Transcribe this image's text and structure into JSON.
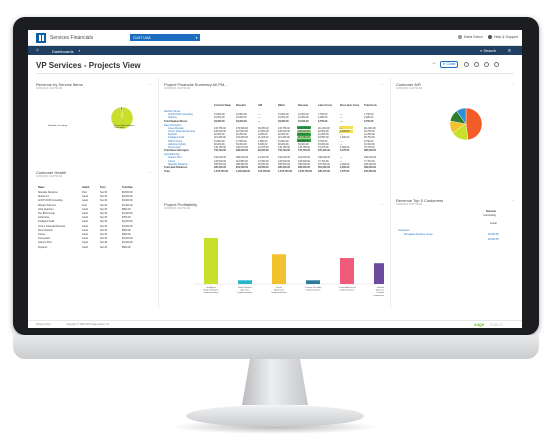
{
  "app": {
    "name": "Services Financials",
    "company": "CUST USA"
  },
  "user": {
    "name": "Karla Greco",
    "help": "Help & Support"
  },
  "nav": {
    "dashboards": "Dashboards",
    "search": "Search"
  },
  "page": {
    "title": "VP Services - Projects View",
    "close": "Close"
  },
  "revenue_by_service": {
    "title": "Revenue by Service Items",
    "sub": "01/06/2016 10:27:56 AM",
    "legend": [
      "Sitewide Consulting",
      "Project Mgt Software Consulting"
    ]
  },
  "customer_health": {
    "title": "Customer Health",
    "sub": "01/06/2016 10:27:56 AM",
    "headers": [
      "Name",
      "Health",
      "Term",
      "Total Due"
    ],
    "rows": [
      [
        "Sitewide Solutions",
        "Poor",
        "Net 30",
        "$6,500.00"
      ],
      [
        "Sholes Inc.",
        "Good",
        "Net 30",
        "$2,000.00"
      ],
      [
        "AOCTCOIR Consulting",
        "Good",
        "Net 30",
        "$3,000.00"
      ],
      [
        "Weston Partners",
        "Poor",
        "Net 30",
        "$1,000.00"
      ],
      [
        "Ultra Quantum",
        "Good",
        "Net 30",
        "$500.00"
      ],
      [
        "The BCS Group",
        "Good",
        "Net 30",
        "$1,000.00"
      ],
      [
        "GoSonrise",
        "Good",
        "Net 30",
        "$750.00"
      ],
      [
        "Intelligent Audit",
        "Good",
        "Net 30",
        "$2,000.00"
      ],
      [
        "Cirrum Financial Services",
        "Good",
        "Net 30",
        "$1,500.00"
      ],
      [
        "Noon Northon",
        "Good",
        "Net 30",
        "$500.00"
      ],
      [
        "Comet",
        "Good",
        "Net 30",
        "$250.00"
      ],
      [
        "Convention",
        "Good",
        "Net 30",
        "$2,000.00"
      ],
      [
        "Column Plus",
        "Good",
        "Net 30",
        "$1,000.00"
      ],
      [
        "Dynamic",
        "Good",
        "Net 30",
        "$500.00"
      ]
    ]
  },
  "project_financial": {
    "title": "Project Financial Summary All PM...",
    "sub": "01/06/2016 10:27:56 AM",
    "headers": [
      "Contract Value",
      "Receipts",
      "A/R",
      "Billed",
      "Revenue",
      "Labor Costs",
      "Non-Labor Costs",
      "Total Costs"
    ],
    "groups": [
      {
        "name": "Stephen Morse",
        "rows": [
          [
            "AOCTCOIR Consulting",
            "13,000.00",
            "13,000.00",
            "—",
            "13,000.00",
            "13,000.00",
            "1,750.00",
            "—",
            "1,750.00"
          ],
          [
            "Sighting",
            "10,000.00",
            "10,000.00",
            "—",
            "10,000.00",
            "10,000.00",
            "2,000.00",
            "—",
            "2,000.00"
          ]
        ],
        "total": [
          "Total Stephen Morse",
          "23,000.00",
          "23,000.00",
          "—",
          "23,000.00",
          "23,000.00",
          "3,750.00",
          "—",
          "3,750.00"
        ]
      },
      {
        "name": "Dave Harrington",
        "rows": [
          [
            "Green Rentals",
            "215,750.00",
            "179,500.00",
            "36,250.00",
            "215,750.00",
            "215,750.00",
            "111,000.00",
            "—",
            "111,000.00"
          ],
          [
            "Cirrum Financial Services",
            "125,000.00",
            "112,500.00",
            "12,500.00",
            "125,000.00",
            "125,000.00",
            "62,500.00",
            "1,875.00",
            "64,375.00"
          ],
          [
            "Dynamic",
            "32,500.00",
            "29,250.00",
            "3,250.00",
            "32,500.00",
            "32,500.00",
            "21,250.00",
            "—",
            "21,250.00"
          ],
          [
            "Intelligent Audit",
            "116,250.00",
            "104,625.00",
            "11,625.00",
            "116,250.00",
            "116,250.00",
            "64,550.00",
            "1,200.00",
            "65,750.00"
          ],
          [
            "NATIX Group",
            "19,500.00",
            "17,550.00",
            "1,950.00",
            "19,500.00",
            "19,500.00",
            "9,750.00",
            "—",
            "9,750.00"
          ],
          [
            "Jefferson Supply",
            "60,000.00",
            "54,000.00",
            "6,000.00",
            "60,000.00",
            "60,000.00",
            "33,000.00",
            "—",
            "33,000.00"
          ],
          [
            "Vencentrapi",
            "146,750.00",
            "132,075.00",
            "14,675.00",
            "146,750.00",
            "146,750.00",
            "73,375.00",
            "2,000.00",
            "75,375.00"
          ]
        ],
        "total": [
          "Total Dave Harrington",
          "715,750.00",
          "629,500.00",
          "86,250.00",
          "715,750.00",
          "715,750.00",
          "375,425.00",
          "5,075.00",
          "380,500.00"
        ]
      },
      {
        "name": "Jack Robinson",
        "rows": [
          [
            "Column Plus",
            "410,000.00",
            "369,000.00",
            "41,000.00",
            "410,000.00",
            "410,000.00",
            "246,000.00",
            "—",
            "246,000.00"
          ],
          [
            "Comet",
            "129,500.00",
            "116,550.00",
            "12,950.00",
            "129,500.00",
            "129,500.00",
            "77,700.00",
            "—",
            "77,700.00"
          ],
          [
            "Sitewide Solutions",
            "395,500.00",
            "355,950.00",
            "39,550.00",
            "395,500.00",
            "395,500.00",
            "237,300.00",
            "2,000.00",
            "239,300.00"
          ]
        ],
        "total": [
          "Total Jack Robinson",
          "935,000.00",
          "841,500.00",
          "93,500.00",
          "935,000.00",
          "935,000.00",
          "561,000.00",
          "2,000.00",
          "563,000.00"
        ]
      }
    ],
    "grand_total": [
      "Total",
      "1,673,750.00",
      "1,494,000.00",
      "179,750.00",
      "1,673,750.00",
      "1,673,750.00",
      "940,175.00",
      "7,075.00",
      "947,250.00"
    ]
  },
  "project_profitability": {
    "title": "Project Profitability",
    "sub": "01/06/2016 10:27:56 AM"
  },
  "customer_ar": {
    "title": "Customer A/R",
    "sub": "01/06/2016 10:27:56 AM"
  },
  "revenue_top5": {
    "title": "Revenue Top 5 Customers",
    "sub": "01/06/2016 10:27:56 AM",
    "col_header": "Revenue",
    "col_sub": "Year Ending",
    "col_sub2": "Actual",
    "group": "Customers",
    "row_name": "Renegade Furniture Group",
    "row_value": "26,062.50",
    "total_value": "26,062.50"
  },
  "footer": {
    "left": "Privacy Policy",
    "copyright": "Copyright © 1999-2016 Sage Intacct, Inc.",
    "brand1": "sage",
    "brand2": "intacct"
  },
  "chart_data": [
    {
      "type": "pie",
      "title": "Revenue by Service Items",
      "labels": [
        "Sitewide Consulting",
        "Project Mgt Software Consulting"
      ],
      "values": [
        98,
        2
      ],
      "colors": [
        "#c8e02b",
        "#2d7d2f"
      ]
    },
    {
      "type": "bar",
      "title": "Project Profitability",
      "categories": [
        "Intelligent Audit Standard Implementation",
        "Steel Workers Adv Stan Implementation",
        "Terrific Advanced Implementation",
        "Column Plus Adv Implementation",
        "Comet Advanced Implementation",
        "Sitewide Advanced Standard Implementation"
      ],
      "values": [
        62,
        5,
        40,
        5,
        35,
        28
      ],
      "colors": [
        "#c8e02b",
        "#24b6c9",
        "#f2c12e",
        "#2d7d9a",
        "#f25a7a",
        "#6b4aa0"
      ],
      "ylim": [
        0,
        70
      ]
    },
    {
      "type": "pie",
      "title": "Customer A/R",
      "values": [
        48,
        18,
        12,
        12,
        10
      ],
      "colors": [
        "#f25c26",
        "#c8e02b",
        "#f2c12e",
        "#2d7d2f",
        "#2f8fd8"
      ]
    }
  ]
}
